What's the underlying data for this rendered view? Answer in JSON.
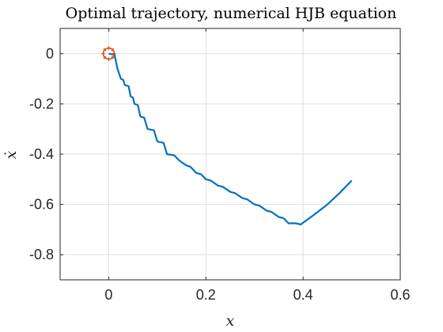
{
  "chart_data": {
    "type": "line",
    "title": "Optimal trajectory, numerical HJB equation",
    "xlabel": "x",
    "ylabel": "ẋ",
    "xlim": [
      -0.1,
      0.6
    ],
    "ylim": [
      -0.9,
      0.1
    ],
    "xticks": [
      0,
      0.2,
      0.4,
      0.6
    ],
    "xtick_labels": [
      "0",
      "0.2",
      "0.4",
      "0.6"
    ],
    "yticks": [
      0,
      -0.2,
      -0.4,
      -0.6,
      -0.8
    ],
    "ytick_labels": [
      "0",
      "-0.2",
      "-0.4",
      "-0.6",
      "-0.8"
    ],
    "grid": true,
    "series": [
      {
        "name": "trajectory",
        "color": "#0072bd",
        "x": [
          0.0,
          0.012,
          0.018,
          0.025,
          0.03,
          0.033,
          0.041,
          0.045,
          0.05,
          0.053,
          0.06,
          0.065,
          0.073,
          0.08,
          0.093,
          0.1,
          0.113,
          0.12,
          0.135,
          0.145,
          0.16,
          0.168,
          0.18,
          0.19,
          0.2,
          0.21,
          0.225,
          0.235,
          0.25,
          0.26,
          0.275,
          0.285,
          0.3,
          0.31,
          0.325,
          0.335,
          0.35,
          0.36,
          0.37,
          0.385,
          0.395,
          0.42,
          0.45,
          0.475,
          0.5
        ],
        "y": [
          0.0,
          -0.005,
          -0.06,
          -0.1,
          -0.105,
          -0.125,
          -0.13,
          -0.17,
          -0.175,
          -0.2,
          -0.205,
          -0.25,
          -0.255,
          -0.3,
          -0.305,
          -0.35,
          -0.355,
          -0.4,
          -0.405,
          -0.425,
          -0.445,
          -0.45,
          -0.475,
          -0.48,
          -0.5,
          -0.505,
          -0.525,
          -0.53,
          -0.55,
          -0.555,
          -0.575,
          -0.58,
          -0.6,
          -0.605,
          -0.625,
          -0.63,
          -0.65,
          -0.655,
          -0.675,
          -0.675,
          -0.68,
          -0.645,
          -0.6,
          -0.555,
          -0.505
        ]
      },
      {
        "name": "start point",
        "color": "#d95319",
        "marker": "circle-star",
        "x": [
          0.0
        ],
        "y": [
          0.0
        ]
      }
    ]
  }
}
